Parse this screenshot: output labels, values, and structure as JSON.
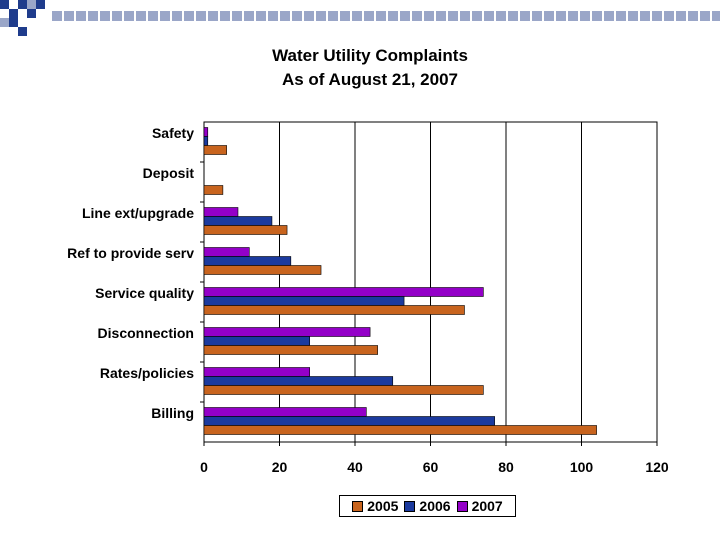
{
  "chart_data": {
    "type": "bar",
    "orientation": "horizontal",
    "title": "Water Utility Complaints",
    "subtitle": "As of August 21, 2007",
    "categories": [
      "Safety",
      "Deposit",
      "Line ext/upgrade",
      "Ref to provide serv",
      "Service quality",
      "Disconnection",
      "Rates/policies",
      "Billing"
    ],
    "series": [
      {
        "name": "2005",
        "color": "#c8641e",
        "values": [
          6,
          5,
          22,
          31,
          69,
          46,
          74,
          104
        ]
      },
      {
        "name": "2006",
        "color": "#1b3a9e",
        "values": [
          1,
          0,
          18,
          23,
          53,
          28,
          50,
          77
        ]
      },
      {
        "name": "2007",
        "color": "#9400c8",
        "values": [
          1,
          0,
          9,
          12,
          74,
          44,
          28,
          43
        ]
      }
    ],
    "xlim": [
      0,
      120
    ],
    "xticks": [
      "0",
      "20",
      "40",
      "60",
      "80",
      "100",
      "120"
    ],
    "grid": true,
    "legend": "bottom"
  },
  "decor": {
    "square_colors": [
      "#1f3c8c",
      "#9aa6c8"
    ]
  }
}
